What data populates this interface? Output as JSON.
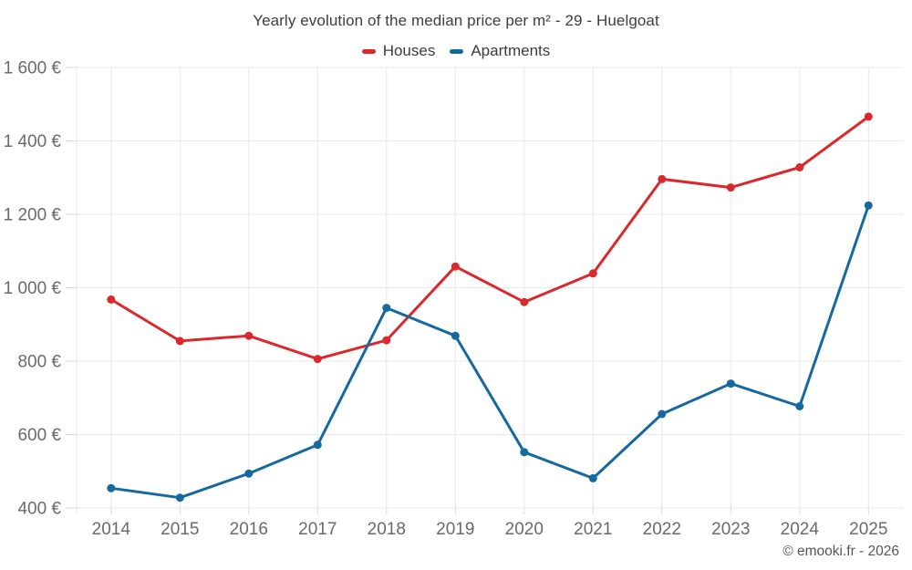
{
  "header": {
    "title": "Yearly evolution of the median price per m² - 29 - Huelgoat"
  },
  "footer": {
    "copyright": "© emooki.fr - 2026"
  },
  "chart_data": {
    "type": "line",
    "title": "Yearly evolution of the median price per m² - 29 - Huelgoat",
    "xlabel": "",
    "ylabel": "",
    "grid": true,
    "legend_position": "top",
    "marker": "circle",
    "categories": [
      "2014",
      "2015",
      "2016",
      "2017",
      "2018",
      "2019",
      "2020",
      "2021",
      "2022",
      "2023",
      "2024",
      "2025"
    ],
    "series": [
      {
        "name": "Houses",
        "color": "#d9292c",
        "values": [
          968,
          855,
          869,
          806,
          857,
          1058,
          961,
          1039,
          1296,
          1273,
          1328,
          1466
        ]
      },
      {
        "name": "Apartments",
        "color": "#16699f",
        "values": [
          454,
          428,
          494,
          572,
          945,
          869,
          552,
          481,
          656,
          739,
          677,
          1224
        ]
      }
    ],
    "ylim": [
      400,
      1600
    ],
    "yticks": [
      {
        "value": 400,
        "label": "400 €"
      },
      {
        "value": 600,
        "label": "600 €"
      },
      {
        "value": 800,
        "label": "800 €"
      },
      {
        "value": 1000,
        "label": "1 000 €"
      },
      {
        "value": 1200,
        "label": "1 200 €"
      },
      {
        "value": 1400,
        "label": "1 400 €"
      },
      {
        "value": 1600,
        "label": "1 600 €"
      }
    ]
  },
  "colors": {
    "grid": "#e8e8e8",
    "tick": "#d8d8d8",
    "axis_label": "#6a6a6a",
    "title": "#3e3e3e",
    "footer": "#565656",
    "background": "#ffffff"
  }
}
